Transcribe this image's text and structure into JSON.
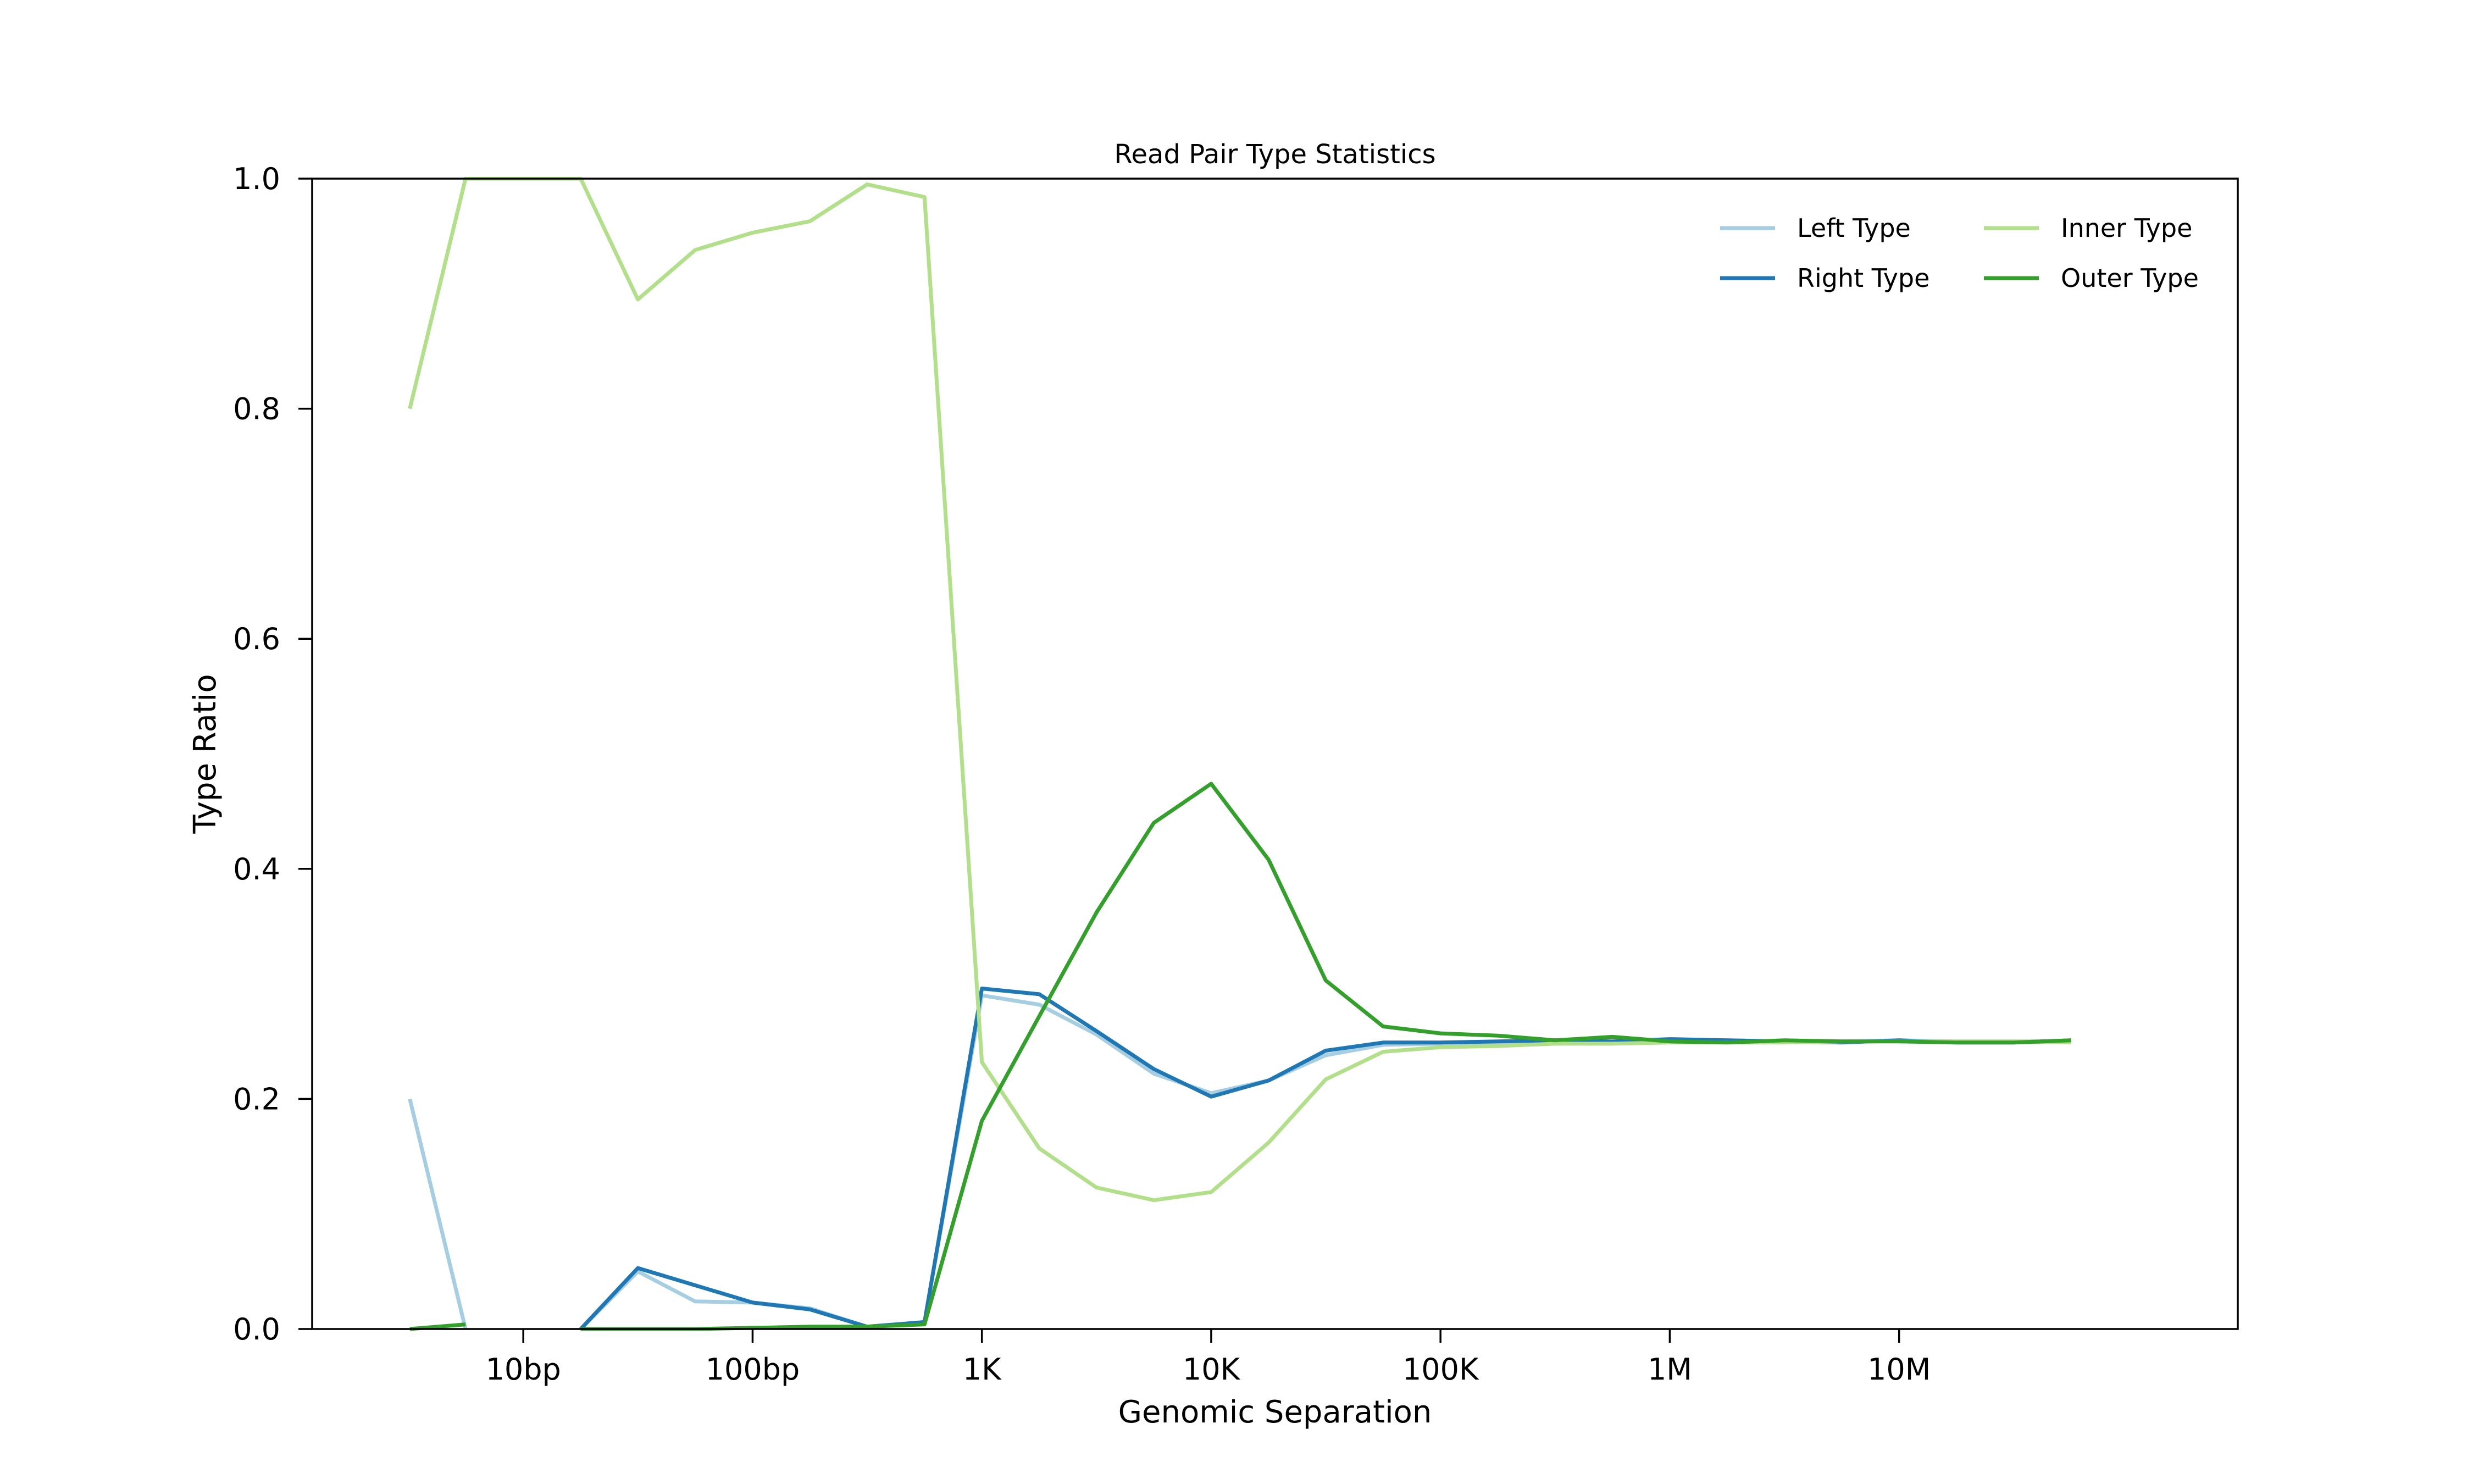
{
  "chart_data": {
    "type": "line",
    "title": "Read Pair Type Statistics",
    "xlabel": "Genomic Separation",
    "ylabel": "Type Ratio",
    "x_scale": "log",
    "x_tick_labels": [
      "10bp",
      "100bp",
      "1K",
      "10K",
      "100K",
      "1M",
      "10M"
    ],
    "x_tick_values": [
      10,
      100,
      1000,
      10000,
      100000,
      1000000,
      10000000
    ],
    "y_tick_labels": [
      "0.0",
      "0.2",
      "0.4",
      "0.6",
      "0.8",
      "1.0"
    ],
    "y_tick_values": [
      0,
      0.2,
      0.4,
      0.6,
      0.8,
      1.0
    ],
    "xlim": [
      1.2,
      300000000
    ],
    "ylim": [
      0,
      1.0
    ],
    "grid": false,
    "legend_position": "top-right",
    "x": [
      3.2,
      5.6,
      10,
      17.8,
      31.6,
      56.2,
      100,
      178,
      316,
      562,
      1000,
      1780,
      3160,
      5620,
      10000,
      17800,
      31600,
      56200,
      100000,
      178000,
      316000,
      562000,
      1000000,
      1780000,
      3160000,
      5620000,
      10000000,
      17800000,
      31600000,
      56200000
    ],
    "series": [
      {
        "name": "Left Type",
        "color": "#a6cee3",
        "values": [
          0.2,
          0,
          null,
          0,
          0.05,
          0.024,
          0.023,
          0.018,
          0.002,
          0.006,
          0.29,
          0.282,
          0.256,
          0.222,
          0.205,
          0.216,
          0.238,
          0.247,
          0.248,
          0.249,
          0.25,
          0.249,
          0.251,
          0.251,
          0.25,
          0.25,
          0.251,
          0.25,
          0.25,
          0.25
        ]
      },
      {
        "name": "Right Type",
        "color": "#1f78b4",
        "values": [
          null,
          null,
          null,
          0,
          0.053,
          0.038,
          0.023,
          0.017,
          0.002,
          0.006,
          0.296,
          0.291,
          0.259,
          0.226,
          0.202,
          0.216,
          0.242,
          0.249,
          0.249,
          0.25,
          0.251,
          0.25,
          0.252,
          0.251,
          0.25,
          0.249,
          0.251,
          0.249,
          0.249,
          0.251
        ]
      },
      {
        "name": "Inner Type",
        "color": "#b2df8a",
        "values": [
          0.8,
          1.0,
          1.0,
          1.0,
          0.895,
          0.938,
          0.953,
          0.963,
          0.995,
          0.984,
          0.232,
          0.157,
          0.123,
          0.112,
          0.119,
          0.162,
          0.217,
          0.241,
          0.245,
          0.246,
          0.248,
          0.248,
          0.249,
          0.249,
          0.249,
          0.25,
          0.25,
          0.25,
          0.25,
          0.249
        ]
      },
      {
        "name": "Outer Type",
        "color": "#33a02c",
        "values": [
          0,
          0.004,
          null,
          0,
          0,
          0,
          0.001,
          0.002,
          0.002,
          0.004,
          0.181,
          0.272,
          0.362,
          0.44,
          0.474,
          0.408,
          0.303,
          0.263,
          0.257,
          0.255,
          0.251,
          0.254,
          0.25,
          0.249,
          0.251,
          0.25,
          0.25,
          0.249,
          0.249,
          0.251
        ]
      }
    ]
  }
}
